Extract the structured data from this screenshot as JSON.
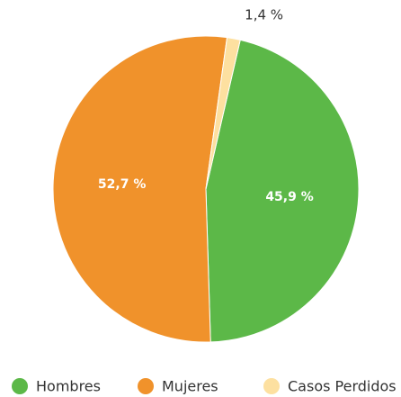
{
  "chart_data": {
    "type": "pie",
    "series": [
      {
        "name": "Hombres",
        "color": "#5cb848",
        "values": [
          45.9
        ],
        "value_labels": [
          "45,9 %"
        ]
      },
      {
        "name": "Mujeres",
        "color": "#f0922b",
        "values": [
          52.7
        ],
        "value_labels": [
          "52,7 %"
        ]
      },
      {
        "name": "Casos Perdidos",
        "color": "#fde0a0",
        "values": [
          1.4
        ],
        "value_labels": [
          "1,4 %"
        ]
      }
    ],
    "legend": "bottom"
  }
}
